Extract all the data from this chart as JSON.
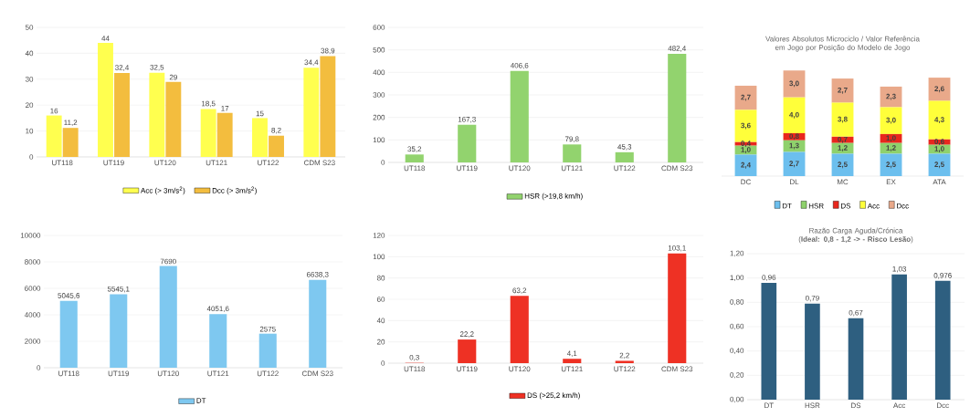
{
  "chart_data": [
    {
      "type": "bar",
      "categories": [
        "UT118",
        "UT119",
        "UT120",
        "UT121",
        "UT122",
        "CDM S23"
      ],
      "ylim": [
        0,
        50
      ],
      "yticks": [
        0,
        10,
        20,
        30,
        40,
        50
      ],
      "grid": "y",
      "legend": "bottom",
      "series": [
        {
          "name": "Acc (> 3m/s$^{2}$)",
          "color": "#ffff4f",
          "values": [
            16,
            44,
            32.5,
            18.5,
            15,
            34.4
          ],
          "value_labels": [
            "16",
            "44",
            "32,5",
            "18,5",
            "15",
            "34,4"
          ]
        },
        {
          "name": "Dcc (> 3m/s$^{2}$)",
          "color": "#f3bd3e",
          "values": [
            11.2,
            32.4,
            29,
            17,
            8.2,
            38.9
          ],
          "value_labels": [
            "11,2",
            "32,4",
            "29",
            "17",
            "8,2",
            "38,9"
          ]
        }
      ]
    },
    {
      "type": "bar",
      "categories": [
        "UT118",
        "UT119",
        "UT120",
        "UT121",
        "UT122",
        "CDM S23"
      ],
      "ylim": [
        0,
        600
      ],
      "yticks": [
        0,
        100,
        200,
        300,
        400,
        500,
        600
      ],
      "grid": "y",
      "legend": "bottom",
      "series": [
        {
          "name": "HSR (>19,8 km/h)",
          "color": "#92d36e",
          "values": [
            35.2,
            167.3,
            406.6,
            79.8,
            45.3,
            482.4
          ],
          "value_labels": [
            "35,2",
            "167,3",
            "406,6",
            "79,8",
            "45,3",
            "482,4"
          ]
        }
      ]
    },
    {
      "type": "bar",
      "title": "Valores Absolutos Microciclo / Valor Referência em Jogo por Posição do Modelo de Jogo",
      "categories": [
        "DC",
        "DL",
        "MC",
        "EX",
        "ATA"
      ],
      "stacked": true,
      "legend": "bottom",
      "series": [
        {
          "name": "DT",
          "color": "#6cbfee",
          "values": [
            2.4,
            2.7,
            2.5,
            2.5,
            2.5
          ],
          "value_labels": [
            "2,4",
            "2,7",
            "2,5",
            "2,5",
            "2,5"
          ]
        },
        {
          "name": "HSR",
          "color": "#8fd16c",
          "values": [
            1.0,
            1.3,
            1.2,
            1.2,
            1.0
          ],
          "value_labels": [
            "1,0",
            "1,3",
            "1,2",
            "1,2",
            "1,0"
          ]
        },
        {
          "name": "DS",
          "color": "#e8271d",
          "values": [
            0.4,
            0.8,
            0.7,
            1.0,
            0.6
          ],
          "value_labels": [
            "0,4",
            "0,8",
            "0,7",
            "1,0",
            "0,6"
          ]
        },
        {
          "name": "Acc",
          "color": "#ffff3a",
          "values": [
            3.6,
            4.0,
            3.8,
            3.0,
            4.3
          ],
          "value_labels": [
            "3,6",
            "4,0",
            "3,8",
            "3,0",
            "4,3"
          ]
        },
        {
          "name": "Dcc",
          "color": "#e9a98a",
          "values": [
            2.7,
            3.0,
            2.7,
            2.3,
            2.6
          ],
          "value_labels": [
            "2,7",
            "3,0",
            "2,7",
            "2,3",
            "2,6"
          ]
        }
      ]
    },
    {
      "type": "bar",
      "categories": [
        "UT118",
        "UT119",
        "UT120",
        "UT121",
        "UT122",
        "CDM S23"
      ],
      "ylim": [
        0,
        10000
      ],
      "yticks": [
        0,
        2000,
        4000,
        6000,
        8000,
        10000
      ],
      "grid": "y",
      "legend": "bottom",
      "series": [
        {
          "name": "DT",
          "color": "#7ec8f0",
          "values": [
            5045.6,
            5545.1,
            7690,
            4051.6,
            2575,
            6638.3
          ],
          "value_labels": [
            "5045,6",
            "5545,1",
            "7690",
            "4051,6",
            "2575",
            "6638,3"
          ]
        }
      ]
    },
    {
      "type": "bar",
      "categories": [
        "UT118",
        "UT119",
        "UT120",
        "UT121",
        "UT122",
        "CDM S23"
      ],
      "ylim": [
        0,
        120
      ],
      "yticks": [
        0,
        20,
        40,
        60,
        80,
        100,
        120
      ],
      "grid": "y",
      "legend": "bottom",
      "series": [
        {
          "name": "DS (>25,2 km/h)",
          "color": "#ee3124",
          "values": [
            0.3,
            22.2,
            63.2,
            4.1,
            2.2,
            103.1
          ],
          "value_labels": [
            "0,3",
            "22,2",
            "63,2",
            "4,1",
            "2,2",
            "103,1"
          ]
        }
      ]
    },
    {
      "type": "bar",
      "title": "Razão Carga Aguda/Crónica (**Ideal: 0,8 - 1,2 -> - Risco Lesão**)",
      "categories": [
        "DT",
        "HSR",
        "DS",
        "Acc",
        "Dcc"
      ],
      "ylim": [
        0,
        1.2
      ],
      "yticks": [
        {
          "value": 0,
          "label": "0,00"
        },
        {
          "value": 0.2,
          "label": "0,20"
        },
        {
          "value": 0.4,
          "label": "0,40"
        },
        {
          "value": 0.6,
          "label": "0,60"
        },
        {
          "value": 0.8,
          "label": "0,80"
        },
        {
          "value": 1.0,
          "label": "1,00"
        },
        {
          "value": 1.2,
          "label": "1,20"
        }
      ],
      "grid": "y",
      "series": [
        {
          "color": "#2e5f80",
          "values": [
            0.96,
            0.79,
            0.67,
            1.03,
            0.976
          ],
          "value_labels": [
            "0,96",
            "0,79",
            "0,67",
            "1,03",
            "0,976"
          ]
        }
      ]
    }
  ]
}
